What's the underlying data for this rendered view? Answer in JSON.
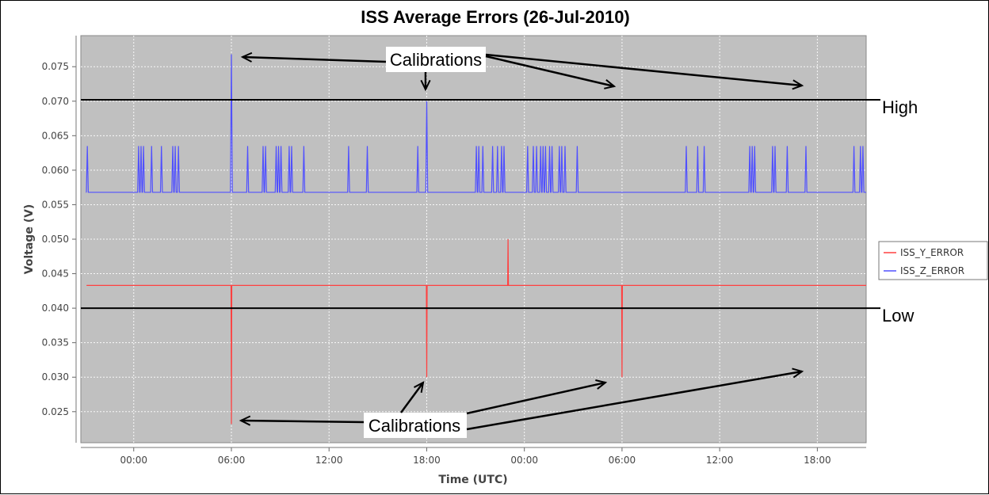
{
  "chart_data": {
    "type": "line",
    "title": "ISS Average Errors (26-Jul-2010)",
    "xlabel": "Time (UTC)",
    "ylabel": "Voltage (V)",
    "ylim": [
      0.0205,
      0.0795
    ],
    "xlim": [
      -3.25,
      45.0
    ],
    "x_ticks": [
      0,
      6,
      12,
      18,
      24,
      30,
      36,
      42
    ],
    "x_tick_labels": [
      "00:00",
      "06:00",
      "12:00",
      "18:00",
      "00:00",
      "06:00",
      "12:00",
      "18:00"
    ],
    "y_ticks": [
      0.025,
      0.03,
      0.035,
      0.04,
      0.045,
      0.05,
      0.055,
      0.06,
      0.065,
      0.07,
      0.075
    ],
    "y_tick_labels": [
      "0.025",
      "0.030",
      "0.035",
      "0.040",
      "0.045",
      "0.050",
      "0.055",
      "0.060",
      "0.065",
      "0.070",
      "0.075"
    ],
    "grid": true,
    "legend_position": "right",
    "series": [
      {
        "name": "ISS_Y_ERROR",
        "color": "#ff4040",
        "baseline": 0.0433,
        "x_start": -2.9,
        "x_end": 45.0,
        "spikes": [
          {
            "x": 6.0,
            "y": 0.0232
          },
          {
            "x": 18.0,
            "y": 0.03
          },
          {
            "x": 23.0,
            "y": 0.05
          },
          {
            "x": 30.0,
            "y": 0.03
          }
        ]
      },
      {
        "name": "ISS_Z_ERROR",
        "color": "#5050ff",
        "baseline": 0.0568,
        "x_start": -2.9,
        "x_end": 45.0,
        "high_level": 0.0635,
        "spike_times": [
          -2.85,
          0.3,
          0.45,
          0.6,
          1.1,
          1.7,
          2.4,
          2.55,
          2.75,
          7.0,
          7.95,
          8.1,
          8.75,
          8.9,
          9.05,
          9.55,
          9.7,
          10.45,
          13.2,
          14.35,
          17.45,
          21.05,
          21.2,
          21.45,
          22.05,
          22.35,
          22.6,
          22.75,
          24.2,
          24.55,
          24.75,
          25.0,
          25.15,
          25.3,
          25.55,
          25.7,
          26.15,
          26.3,
          26.5,
          27.25,
          33.95,
          34.65,
          35.05,
          37.85,
          38.0,
          38.15,
          39.25,
          39.4,
          40.15,
          41.3,
          44.25,
          44.65,
          44.8
        ],
        "big_spikes": [
          {
            "x": 6.0,
            "y": 0.0768
          },
          {
            "x": 18.0,
            "y": 0.07
          }
        ]
      }
    ],
    "thresholds": [
      {
        "label": "High",
        "y": 0.0702
      },
      {
        "label": "Low",
        "y": 0.04
      }
    ],
    "annotations": [
      {
        "label": "Calibrations",
        "position": "top"
      },
      {
        "label": "Calibrations",
        "position": "bottom"
      }
    ]
  }
}
